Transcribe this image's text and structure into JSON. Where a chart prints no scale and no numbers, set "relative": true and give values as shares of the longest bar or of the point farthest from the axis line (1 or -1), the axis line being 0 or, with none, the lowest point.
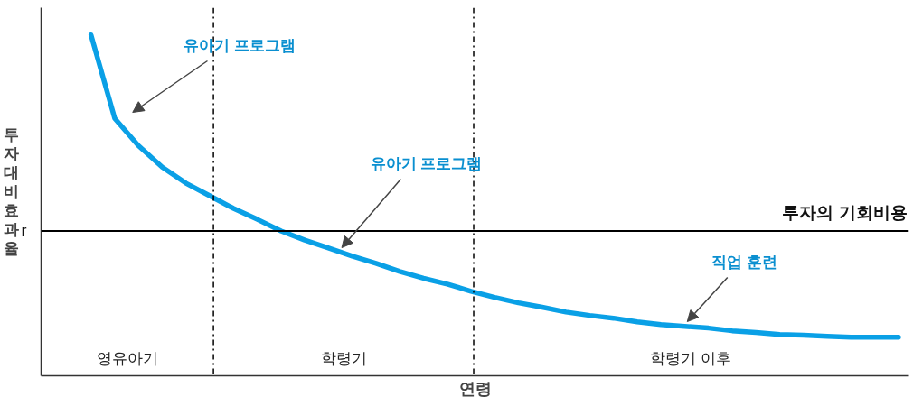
{
  "chart_data": {
    "type": "line",
    "relative": true,
    "xlabel": "연령",
    "ylabel": "투자대비효과율",
    "marker": "none",
    "line_style": "solid",
    "categories": [
      null,
      null,
      null,
      null,
      null,
      null,
      null,
      null,
      null,
      null,
      null,
      null,
      null,
      null,
      null,
      null,
      null,
      null,
      null,
      null,
      null,
      null,
      null,
      null,
      null,
      null,
      null,
      null,
      null,
      null,
      null,
      null,
      null,
      null,
      null
    ],
    "series": [
      {
        "color": "#0aa0e6",
        "values": [
          1.0,
          0.755,
          0.675,
          0.612,
          0.565,
          0.528,
          0.491,
          0.459,
          0.425,
          0.398,
          0.375,
          0.351,
          0.33,
          0.306,
          0.286,
          0.269,
          0.248,
          0.23,
          0.214,
          0.201,
          0.187,
          0.177,
          0.169,
          0.158,
          0.15,
          0.145,
          0.14,
          0.132,
          0.127,
          0.121,
          0.119,
          0.116,
          0.113,
          0.113,
          0.113
        ]
      }
    ],
    "ref_lines": [
      {
        "axis": "y",
        "value": 0.425,
        "label": "투자의 기회비용",
        "color": "#000000",
        "line_style": "solid"
      }
    ],
    "annotations": [
      "r",
      "영유아기",
      "학령기",
      "학령기 이후",
      "유아기 프로그램",
      "유아기 프로그램",
      "직업 훈련"
    ]
  }
}
